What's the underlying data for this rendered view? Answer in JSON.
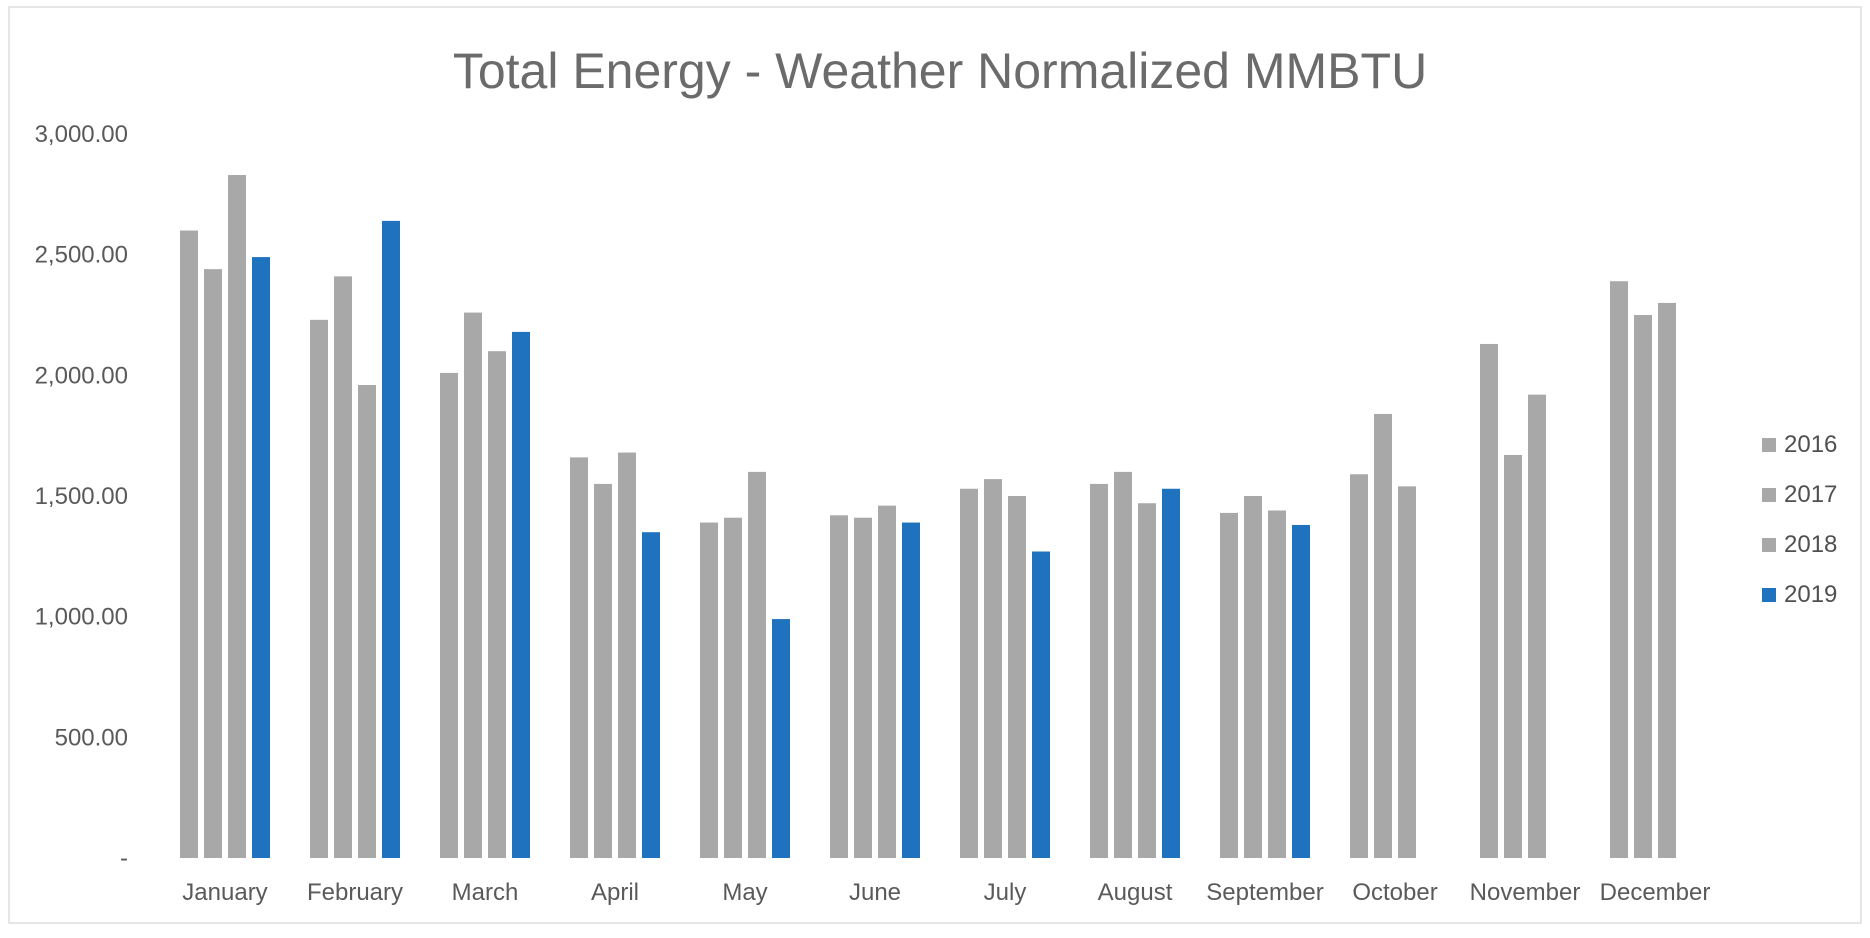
{
  "chart_data": {
    "type": "bar",
    "title": "Total Energy - Weather Normalized MMBTU",
    "xlabel": "",
    "ylabel": "",
    "ylim": [
      0,
      3000
    ],
    "y_ticks": [
      "-",
      "500.00",
      "1,000.00",
      "1,500.00",
      "2,000.00",
      "2,500.00",
      "3,000.00"
    ],
    "y_tick_values": [
      0,
      500,
      1000,
      1500,
      2000,
      2500,
      3000
    ],
    "grid": false,
    "legend_position": "right",
    "categories": [
      "January",
      "February",
      "March",
      "April",
      "May",
      "June",
      "July",
      "August",
      "September",
      "October",
      "November",
      "December"
    ],
    "series": [
      {
        "name": "2016",
        "color": "#a8a8a8",
        "values": [
          2600,
          2230,
          2010,
          1660,
          1390,
          1420,
          1530,
          1550,
          1430,
          1590,
          2130,
          2390
        ]
      },
      {
        "name": "2017",
        "color": "#a8a8a8",
        "values": [
          2440,
          2410,
          2260,
          1550,
          1410,
          1410,
          1570,
          1600,
          1500,
          1840,
          1670,
          2250
        ]
      },
      {
        "name": "2018",
        "color": "#a8a8a8",
        "values": [
          2830,
          1960,
          2100,
          1680,
          1600,
          1460,
          1500,
          1470,
          1440,
          1540,
          1920,
          2300
        ]
      },
      {
        "name": "2019",
        "color": "#1f72be",
        "values": [
          2490,
          2640,
          2180,
          1350,
          990,
          1390,
          1270,
          1530,
          1380,
          null,
          null,
          null
        ]
      }
    ]
  }
}
